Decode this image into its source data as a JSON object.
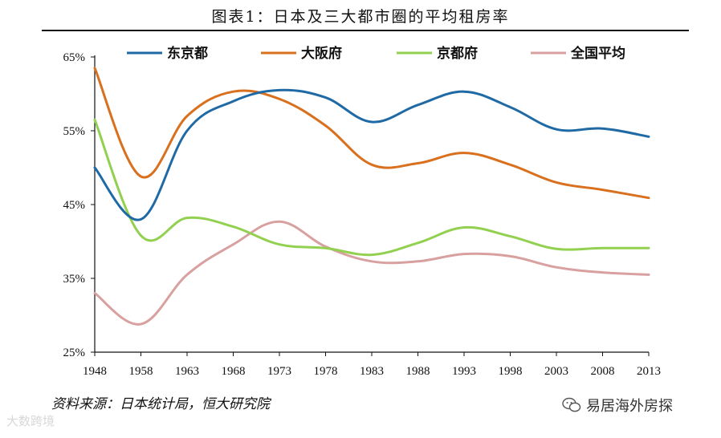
{
  "title": "图表1：日本及三大都市圈的平均租房率",
  "source": "资料来源：日本统计局，恒大研究院",
  "watermark_left": "大数跨境",
  "watermark_right": "易居海外房探",
  "chart_data": {
    "type": "line",
    "title": "图表1：日本及三大都市圈的平均租房率",
    "xlabel": "",
    "ylabel": "",
    "x": [
      1948,
      1958,
      1963,
      1968,
      1973,
      1978,
      1983,
      1988,
      1993,
      1998,
      2003,
      2008,
      2013
    ],
    "xlim": [
      1948,
      2013
    ],
    "ylim": [
      25,
      65
    ],
    "yticks": [
      25,
      35,
      45,
      55,
      65
    ],
    "ytick_labels": [
      "25%",
      "35%",
      "45%",
      "55%",
      "65%"
    ],
    "xtick_labels": [
      "1948",
      "1958",
      "1963",
      "1968",
      "1973",
      "1978",
      "1983",
      "1988",
      "1993",
      "1998",
      "2003",
      "2008",
      "2013"
    ],
    "legend_position": "top",
    "series": [
      {
        "name": "东京都",
        "color": "#1f6aa5",
        "values": [
          50.0,
          43.0,
          55.0,
          59.0,
          60.5,
          59.5,
          56.2,
          58.5,
          60.3,
          58.2,
          55.2,
          55.3,
          54.2
        ]
      },
      {
        "name": "大阪府",
        "color": "#d9701e",
        "values": [
          63.5,
          48.8,
          57.0,
          60.3,
          59.3,
          55.7,
          50.4,
          50.6,
          52.0,
          50.4,
          48.0,
          47.0,
          45.9
        ]
      },
      {
        "name": "京都府",
        "color": "#92d050",
        "values": [
          56.5,
          40.8,
          43.2,
          42.0,
          39.6,
          39.1,
          38.2,
          39.8,
          41.9,
          40.7,
          39.0,
          39.1,
          39.1
        ]
      },
      {
        "name": "全国平均",
        "color": "#d9a0a0",
        "values": [
          33.0,
          28.8,
          35.5,
          39.6,
          42.7,
          39.3,
          37.3,
          37.3,
          38.3,
          38.0,
          36.5,
          35.8,
          35.5
        ]
      }
    ]
  }
}
